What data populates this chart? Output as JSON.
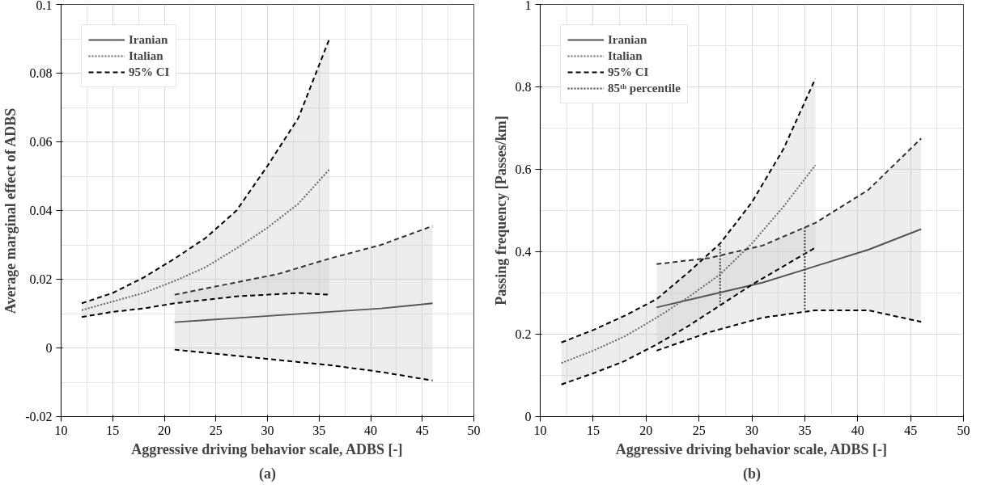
{
  "chart_data": [
    {
      "type": "line",
      "ylabel": "Average marginal effect of ADBS",
      "xlabel": "Aggressive driving behavior scale, ADBS [-]",
      "annotations": [
        "(a)"
      ],
      "xlim": [
        10,
        50
      ],
      "xticks": [
        10,
        15,
        20,
        25,
        30,
        35,
        40,
        45,
        50
      ],
      "ylim": [
        -0.02,
        0.1
      ],
      "yticks": [
        -0.02,
        0,
        0.02,
        0.04,
        0.06,
        0.08,
        0.1
      ],
      "grid": true,
      "legend": "top left",
      "series": [
        {
          "name": "Iranian",
          "line_style": "solid",
          "color": "#555555",
          "x": [
            21,
            26,
            31,
            36,
            41,
            46
          ],
          "values": [
            0.0075,
            0.0085,
            0.0095,
            0.0105,
            0.0115,
            0.013
          ],
          "lower": [
            -0.0005,
            -0.002,
            -0.0035,
            -0.005,
            -0.007,
            -0.0095
          ],
          "upper": [
            0.0155,
            0.0185,
            0.0215,
            0.026,
            0.03,
            0.0355
          ]
        },
        {
          "name": "Italian",
          "line_style": "dotted",
          "color": "#666666",
          "x": [
            12,
            15,
            18,
            21,
            24,
            27,
            30,
            33,
            36
          ],
          "values": [
            0.011,
            0.0135,
            0.016,
            0.0195,
            0.0235,
            0.029,
            0.035,
            0.042,
            0.052
          ],
          "lower": [
            0.009,
            0.0105,
            0.0115,
            0.013,
            0.014,
            0.015,
            0.0155,
            0.016,
            0.0155
          ],
          "upper": [
            0.013,
            0.016,
            0.0205,
            0.026,
            0.032,
            0.04,
            0.053,
            0.067,
            0.09
          ]
        },
        {
          "name": "95% CI",
          "line_style": "dashed",
          "color": "#000000",
          "x": [
            12,
            15,
            18,
            21,
            24,
            27,
            30,
            33,
            36
          ],
          "values": [
            0.013,
            0.016,
            0.0205,
            0.026,
            0.032,
            0.04,
            0.053,
            0.067,
            0.09
          ]
        },
        {
          "line_style": "dashed",
          "color": "#000000",
          "x": [
            12,
            15,
            18,
            21,
            24,
            27,
            30,
            33,
            36
          ],
          "values": [
            0.009,
            0.0105,
            0.0115,
            0.013,
            0.014,
            0.015,
            0.0155,
            0.016,
            0.0155
          ]
        },
        {
          "line_style": "dashed",
          "color": "#333333",
          "x": [
            21,
            26,
            31,
            36,
            41,
            46
          ],
          "values": [
            0.0155,
            0.0185,
            0.0215,
            0.026,
            0.03,
            0.0355
          ]
        },
        {
          "line_style": "dashed",
          "color": "#000000",
          "x": [
            21,
            26,
            31,
            36,
            41,
            46
          ],
          "values": [
            -0.0005,
            -0.002,
            -0.0035,
            -0.005,
            -0.007,
            -0.0095
          ]
        }
      ]
    },
    {
      "type": "line",
      "ylabel": "Passing frequency [Passes/km]",
      "xlabel": "Aggressive driving behavior scale, ADBS [-]",
      "annotations": [
        "(b)"
      ],
      "xlim": [
        10,
        50
      ],
      "xticks": [
        10,
        15,
        20,
        25,
        30,
        35,
        40,
        45,
        50
      ],
      "ylim": [
        0,
        1
      ],
      "yticks": [
        0,
        0.2,
        0.4,
        0.6,
        0.8,
        1
      ],
      "grid": true,
      "legend": "top left",
      "series": [
        {
          "name": "Iranian",
          "line_style": "solid",
          "color": "#555555",
          "x": [
            21,
            26,
            31,
            36,
            41,
            46
          ],
          "values": [
            0.265,
            0.295,
            0.325,
            0.365,
            0.405,
            0.455
          ],
          "lower": [
            0.16,
            0.205,
            0.24,
            0.258,
            0.258,
            0.23
          ],
          "upper": [
            0.37,
            0.385,
            0.415,
            0.47,
            0.55,
            0.675
          ]
        },
        {
          "name": "Italian",
          "line_style": "dotted",
          "color": "#666666",
          "x": [
            12,
            15,
            18,
            21,
            24,
            27,
            30,
            33,
            36
          ],
          "values": [
            0.13,
            0.16,
            0.195,
            0.24,
            0.29,
            0.345,
            0.42,
            0.51,
            0.61
          ],
          "lower": [
            0.078,
            0.105,
            0.135,
            0.175,
            0.22,
            0.27,
            0.32,
            0.365,
            0.41
          ],
          "upper": [
            0.18,
            0.21,
            0.245,
            0.285,
            0.35,
            0.42,
            0.52,
            0.65,
            0.82
          ]
        },
        {
          "name": "95% CI",
          "line_style": "dashed",
          "color": "#000000",
          "x": [
            12,
            15,
            18,
            21,
            24,
            27,
            30,
            33,
            36
          ],
          "values": [
            0.18,
            0.21,
            0.245,
            0.285,
            0.35,
            0.42,
            0.52,
            0.65,
            0.82
          ]
        },
        {
          "line_style": "dashed",
          "color": "#000000",
          "x": [
            12,
            15,
            18,
            21,
            24,
            27,
            30,
            33,
            36
          ],
          "values": [
            0.078,
            0.105,
            0.135,
            0.175,
            0.22,
            0.27,
            0.32,
            0.365,
            0.41
          ]
        },
        {
          "line_style": "dashed",
          "color": "#333333",
          "x": [
            21,
            26,
            31,
            36,
            41,
            46
          ],
          "values": [
            0.37,
            0.385,
            0.415,
            0.47,
            0.55,
            0.675
          ]
        },
        {
          "line_style": "dashed",
          "color": "#000000",
          "x": [
            21,
            26,
            31,
            36,
            41,
            46
          ],
          "values": [
            0.16,
            0.205,
            0.24,
            0.258,
            0.258,
            0.23
          ]
        },
        {
          "name": "85ᵗʰ percentile",
          "line_style": "dotted",
          "color": "#444444",
          "x": [
            27,
            27
          ],
          "values": [
            0.27,
            0.42
          ]
        },
        {
          "line_style": "dotted",
          "color": "#444444",
          "x": [
            35,
            35
          ],
          "values": [
            0.26,
            0.46
          ]
        }
      ]
    }
  ]
}
